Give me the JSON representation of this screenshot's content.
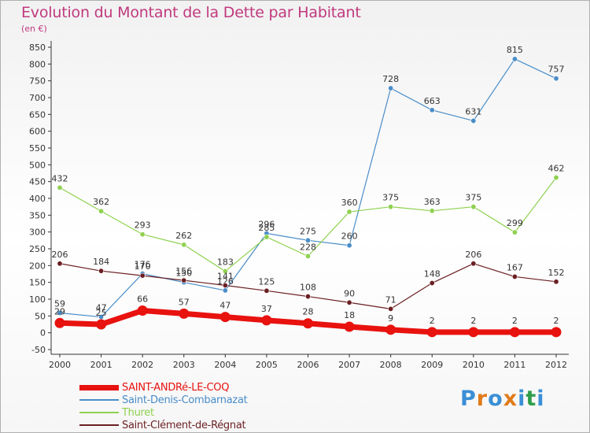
{
  "title": "Evolution du Montant de la Dette par Habitant",
  "unit": "(en €)",
  "brand": {
    "letters": [
      "P",
      "r",
      "o",
      "x",
      "i",
      "t",
      "i"
    ],
    "colors": [
      "#3a8fd6",
      "#e07b1a",
      "#3a8fd6",
      "#e07b1a",
      "#3a8fd6",
      "#2f9e4a",
      "#3a8fd6"
    ]
  },
  "chart_data": {
    "type": "line",
    "title": "Evolution du Montant de la Dette par Habitant",
    "ylabel": "(en €)",
    "xlabel": "",
    "x": [
      "2000",
      "2001",
      "2002",
      "2003",
      "2004",
      "2005",
      "2006",
      "2007",
      "2008",
      "2009",
      "2010",
      "2011",
      "2012"
    ],
    "ylim": [
      -50,
      850
    ],
    "yticks": [
      -50,
      0,
      50,
      100,
      150,
      200,
      250,
      300,
      350,
      400,
      450,
      500,
      550,
      600,
      650,
      700,
      750,
      800,
      850
    ],
    "grid": false,
    "legend_position": "bottom-left",
    "series": [
      {
        "name": "SAINT-ANDRé-LE-COQ",
        "color": "#e8120f",
        "values": [
          29,
          25,
          66,
          57,
          47,
          37,
          28,
          18,
          9,
          2,
          2,
          2,
          2
        ],
        "labels": [
          "29",
          "25",
          "66",
          "57",
          "47",
          "37",
          "28",
          "18",
          "9",
          "2",
          "2",
          "2",
          "2"
        ]
      },
      {
        "name": "Saint-Denis-Combarnazat",
        "color": "#4a8dc8",
        "values": [
          59,
          47,
          176,
          150,
          126,
          296,
          275,
          260,
          728,
          663,
          631,
          815,
          757
        ],
        "labels": [
          "59",
          "47",
          "176",
          "150",
          "126",
          "296",
          "275",
          "260",
          "728",
          "663",
          "631",
          "815",
          "757"
        ]
      },
      {
        "name": "Thuret",
        "color": "#8fd14f",
        "values": [
          432,
          362,
          293,
          262,
          183,
          285,
          228,
          360,
          375,
          363,
          375,
          299,
          462
        ],
        "labels": [
          "432",
          "362",
          "293",
          "262",
          "183",
          "285",
          "228",
          "360",
          "375",
          "363",
          "375",
          "299",
          "462"
        ]
      },
      {
        "name": "Saint-Clément-de-Régnat",
        "color": "#6b1f22",
        "values": [
          206,
          184,
          170,
          156,
          141,
          125,
          108,
          90,
          71,
          148,
          206,
          167,
          152
        ],
        "labels": [
          "206",
          "184",
          "170",
          "156",
          "141",
          "125",
          "108",
          "90",
          "71",
          "148",
          "206",
          "167",
          "152"
        ]
      }
    ]
  }
}
